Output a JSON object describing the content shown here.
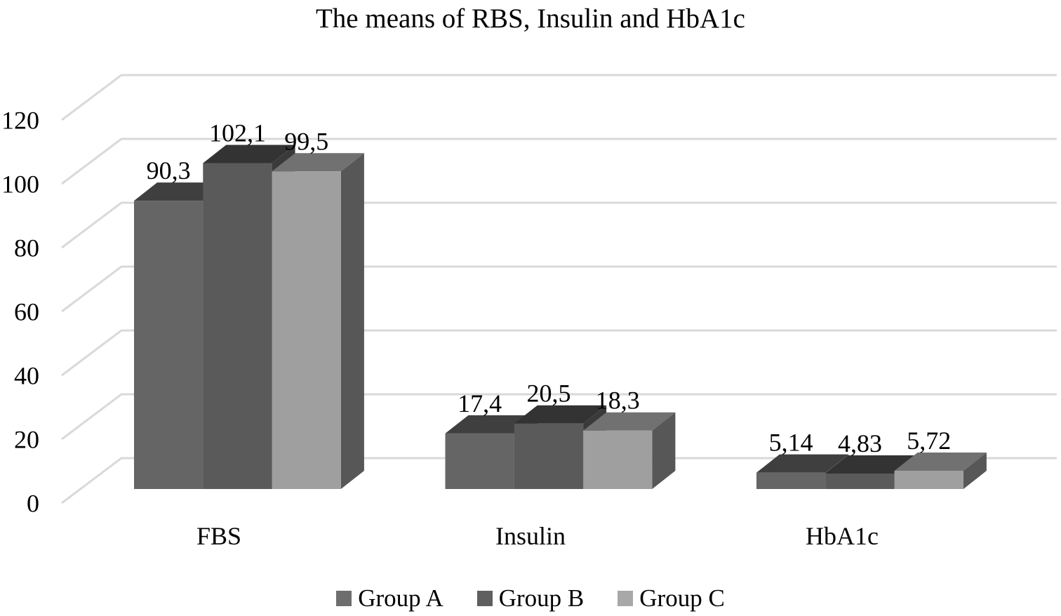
{
  "chart_data": {
    "type": "bar",
    "variant": "3d-clustered-column",
    "title": "The means of RBS, Insulin and HbA1c",
    "categories": [
      "FBS",
      "Insulin",
      "HbA1c"
    ],
    "series": [
      {
        "name": "Group A",
        "values": [
          90.3,
          17.4,
          5.14
        ],
        "labels": [
          "90,3",
          "17,4",
          "5,14"
        ],
        "colors": {
          "front": "#656565",
          "top": "#3f3f3f",
          "side": "#474747",
          "legend": "#6e6e6e"
        }
      },
      {
        "name": "Group B",
        "values": [
          102.1,
          20.5,
          4.83
        ],
        "labels": [
          "102,1",
          "20,5",
          "4,83"
        ],
        "colors": {
          "front": "#5a5a5a",
          "top": "#333333",
          "side": "#3a3a3a",
          "legend": "#5f5f5f"
        }
      },
      {
        "name": "Group C",
        "values": [
          99.5,
          18.3,
          5.72
        ],
        "labels": [
          "99,5",
          "18,3",
          "5,72"
        ],
        "colors": {
          "front": "#9f9f9f",
          "top": "#717171",
          "side": "#575757",
          "legend": "#a8a8a8"
        }
      }
    ],
    "y_axis": {
      "min": 0,
      "max": 120,
      "ticks": [
        0,
        20,
        40,
        60,
        80,
        100,
        120
      ],
      "tick_labels": [
        "0",
        "20",
        "40",
        "60",
        "80",
        "100",
        "120"
      ]
    },
    "grid": true,
    "gridline_color": "#d9d9d9",
    "legend_position": "bottom",
    "background": "#ffffff",
    "text_color": "#000000"
  }
}
